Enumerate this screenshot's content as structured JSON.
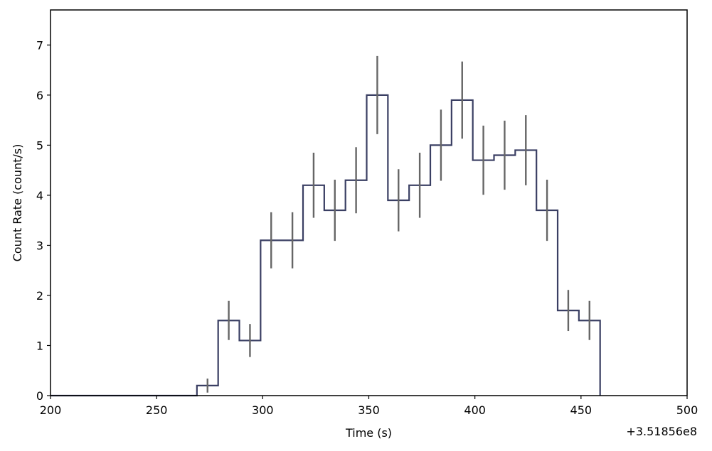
{
  "chart_data": {
    "type": "line",
    "step": true,
    "xlabel": "Time (s)",
    "ylabel": "Count Rate (count/s)",
    "x_offset_label": "+3.51856e8",
    "xlim": [
      200,
      500
    ],
    "ylim": [
      0,
      7.7
    ],
    "xticks": [
      200,
      250,
      300,
      350,
      400,
      450,
      500
    ],
    "yticks": [
      0,
      1,
      2,
      3,
      4,
      5,
      6,
      7
    ],
    "grid": false,
    "bin_width": 10,
    "bin_left_edges": [
      269,
      279,
      289,
      299,
      309,
      319,
      329,
      339,
      349,
      359,
      369,
      379,
      389,
      399,
      409,
      419,
      429,
      439,
      449
    ],
    "bin_centers": [
      274,
      284,
      294,
      304,
      314,
      324,
      334,
      344,
      354,
      364,
      374,
      384,
      394,
      404,
      414,
      424,
      434,
      444,
      454
    ],
    "rates": [
      0.2,
      1.5,
      1.1,
      3.1,
      3.1,
      4.2,
      3.7,
      4.3,
      6.0,
      3.9,
      4.2,
      5.0,
      5.9,
      4.7,
      4.8,
      4.9,
      3.7,
      1.7,
      1.5
    ],
    "errors": [
      0.14,
      0.39,
      0.33,
      0.56,
      0.56,
      0.65,
      0.61,
      0.66,
      0.78,
      0.62,
      0.65,
      0.71,
      0.77,
      0.69,
      0.69,
      0.7,
      0.61,
      0.41,
      0.39
    ],
    "line_color": "#3a3f63",
    "error_color": "#666666"
  }
}
